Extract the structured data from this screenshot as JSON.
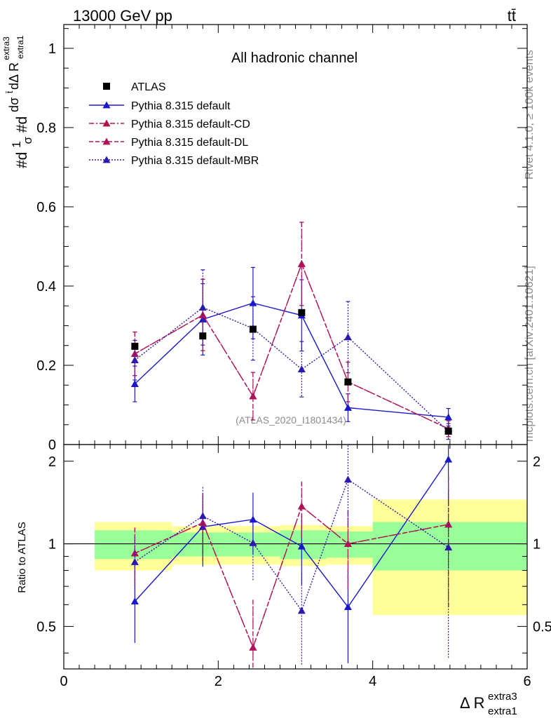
{
  "header": {
    "left": "13000 GeV pp",
    "right": "tt̄"
  },
  "side_text": {
    "events": "Rivet 4.1.0, ≥ 100k events",
    "source": "mcplots.cern.ch [arXiv:2401.10621]"
  },
  "chart_data": {
    "type": "line",
    "title": "All hadronic channel",
    "watermark": "(ATLAS_2020_I1801434)",
    "ylabel": {
      "p1": "#d",
      "p2": "1",
      "p3": "σ",
      "p4": "#d",
      "p5": "dσ",
      "p5sup": "t̄",
      "p6": "dΔ R",
      "p6sub": "extra1",
      "p6sup": "extra3"
    },
    "xlabel": {
      "main": "Δ R",
      "sup": "extra3",
      "sub": "extra1"
    },
    "ratio_ylabel": "Ratio to ATLAS",
    "xlim": [
      0,
      6
    ],
    "ylim": [
      0,
      1.06
    ],
    "ratio_ylim": [
      0.35,
      2.3
    ],
    "x_ticks": [
      "0",
      "2",
      "4",
      "6"
    ],
    "y_ticks": [
      "0",
      "0.2",
      "0.4",
      "0.6",
      "0.8",
      "1"
    ],
    "ratio_ticks": [
      "0.5",
      "1",
      "2"
    ],
    "ratio_ticks_right": [
      "0.5",
      "1",
      "2"
    ],
    "x": [
      0.92,
      1.8,
      2.45,
      3.08,
      3.68,
      4.98
    ],
    "bins": [
      [
        0.4,
        1.4
      ],
      [
        1.4,
        2.1
      ],
      [
        2.1,
        2.8
      ],
      [
        2.8,
        3.4
      ],
      [
        3.4,
        4.0
      ],
      [
        4.0,
        6.0
      ]
    ],
    "data": {
      "name": "ATLAS",
      "values": [
        0.248,
        0.274,
        0.291,
        0.333,
        0.158,
        0.034
      ],
      "band_green": [
        0.12,
        0.1,
        0.1,
        0.12,
        0.11,
        0.2
      ],
      "band_yellow": [
        0.2,
        0.16,
        0.16,
        0.17,
        0.16,
        0.45
      ]
    },
    "series": [
      {
        "name": "Pythia 8.315 default",
        "color": "#1919cc",
        "dash": "",
        "values": [
          0.153,
          0.316,
          0.357,
          0.326,
          0.093,
          0.069
        ],
        "err": [
          0.045,
          0.09,
          0.09,
          0.09,
          0.035,
          0.022
        ]
      },
      {
        "name": "Pythia 8.315 default-CD",
        "color": "#b0124c",
        "dash": "7,3,2,3",
        "values": [
          0.229,
          0.327,
          0.122,
          0.456,
          0.158,
          0.04
        ],
        "err": [
          0.055,
          0.09,
          0.06,
          0.105,
          0.05,
          0.02
        ]
      },
      {
        "name": "Pythia 8.315 default-DL",
        "color": "#b0125a",
        "dash": "6,3",
        "values": [
          0.229,
          0.327,
          0.122,
          0.456,
          0.158,
          0.04
        ],
        "err": [
          0.055,
          0.09,
          0.06,
          0.105,
          0.05,
          0.02
        ]
      },
      {
        "name": "Pythia 8.315 default-MBR",
        "color": "#2a1ab0",
        "dash": "2,2",
        "values": [
          0.213,
          0.346,
          0.293,
          0.19,
          0.271,
          0.033
        ],
        "err": [
          0.05,
          0.095,
          0.08,
          0.07,
          0.09,
          0.02
        ]
      }
    ]
  }
}
